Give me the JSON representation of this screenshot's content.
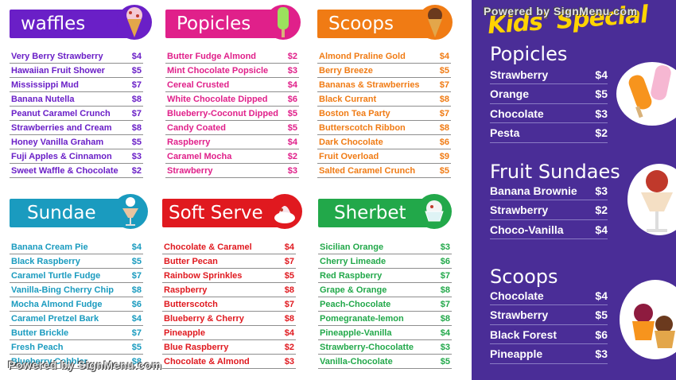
{
  "sections": {
    "waffles": {
      "title": "waffles",
      "color": "#6a1fc7",
      "items": [
        {
          "name": "Very Berry Strawberry",
          "price": "$4"
        },
        {
          "name": "Hawaiian Fruit Shower",
          "price": "$5"
        },
        {
          "name": "Mississippi Mud",
          "price": "$7"
        },
        {
          "name": "Banana Nutella",
          "price": "$8"
        },
        {
          "name": "Peanut Caramel Crunch",
          "price": "$7"
        },
        {
          "name": "Strawberries and Cream",
          "price": "$8"
        },
        {
          "name": "Honey Vanilla Graham",
          "price": "$5"
        },
        {
          "name": "Fuji Apples & Cinnamon",
          "price": "$3"
        },
        {
          "name": "Sweet Waffle & Chocolate",
          "price": "$2"
        }
      ]
    },
    "popicles": {
      "title": "Popicles",
      "color": "#e0208a",
      "items": [
        {
          "name": "Butter Fudge Almond",
          "price": "$2"
        },
        {
          "name": "Mint Chocolate Popsicle",
          "price": "$3"
        },
        {
          "name": "Cereal Crusted",
          "price": "$4"
        },
        {
          "name": "White Chocolate Dipped",
          "price": "$6"
        },
        {
          "name": "Blueberry-Coconut Dipped",
          "price": "$5"
        },
        {
          "name": "Candy Coated",
          "price": "$5"
        },
        {
          "name": "Raspberry",
          "price": "$4"
        },
        {
          "name": "Caramel Mocha",
          "price": "$2"
        },
        {
          "name": "Strawberry",
          "price": "$3"
        }
      ]
    },
    "scoops": {
      "title": "Scoops",
      "color": "#f07b14",
      "items": [
        {
          "name": "Almond Praline Gold",
          "price": "$4"
        },
        {
          "name": "Berry Breeze",
          "price": "$5"
        },
        {
          "name": "Bananas & Strawberries",
          "price": "$7"
        },
        {
          "name": "Black Currant",
          "price": "$8"
        },
        {
          "name": "Boston Tea Party",
          "price": "$7"
        },
        {
          "name": "Butterscotch Ribbon",
          "price": "$8"
        },
        {
          "name": "Dark Chocolate",
          "price": "$6"
        },
        {
          "name": "Fruit Overload",
          "price": "$9"
        },
        {
          "name": "Salted Caramel Crunch",
          "price": "$5"
        }
      ]
    },
    "sundae": {
      "title": "Sundae",
      "color": "#1a9bbf",
      "items": [
        {
          "name": "Banana Cream Pie",
          "price": "$4"
        },
        {
          "name": "Black Raspberry",
          "price": "$5"
        },
        {
          "name": "Caramel Turtle Fudge",
          "price": "$7"
        },
        {
          "name": "Vanilla-Bing Cherry Chip",
          "price": "$8"
        },
        {
          "name": "Mocha Almond Fudge",
          "price": "$6"
        },
        {
          "name": "Caramel Pretzel Bark",
          "price": "$4"
        },
        {
          "name": "Butter Brickle",
          "price": "$7"
        },
        {
          "name": "Fresh Peach",
          "price": "$5"
        },
        {
          "name": "Blueberry Cobbler",
          "price": "$8"
        }
      ]
    },
    "softserve": {
      "title": "Soft Serve",
      "color": "#e0191f",
      "items": [
        {
          "name": "Chocolate & Caramel",
          "price": "$4"
        },
        {
          "name": "Butter Pecan",
          "price": "$7"
        },
        {
          "name": "Rainbow Sprinkles",
          "price": "$5"
        },
        {
          "name": "Raspberry",
          "price": "$8"
        },
        {
          "name": "Butterscotch",
          "price": "$7"
        },
        {
          "name": "Blueberry & Cherry",
          "price": "$8"
        },
        {
          "name": "Pineapple",
          "price": "$4"
        },
        {
          "name": "Blue Raspberry",
          "price": "$2"
        },
        {
          "name": "Chocolate & Almond",
          "price": "$3"
        }
      ]
    },
    "sherbet": {
      "title": "Sherbet",
      "color": "#22a84a",
      "items": [
        {
          "name": "Sicilian Orange",
          "price": "$3"
        },
        {
          "name": "Cherry Limeade",
          "price": "$6"
        },
        {
          "name": "Red Raspberry",
          "price": "$7"
        },
        {
          "name": "Grape & Orange",
          "price": "$8"
        },
        {
          "name": "Peach-Chocolate",
          "price": "$7"
        },
        {
          "name": "Pomegranate-lemon",
          "price": "$8"
        },
        {
          "name": "Pineapple-Vanilla",
          "price": "$4"
        },
        {
          "name": "Strawberry-Chocolatte",
          "price": "$3"
        },
        {
          "name": "Vanilla-Chocolate",
          "price": "$5"
        }
      ]
    }
  },
  "kids": {
    "title": "Kids' Special",
    "color": "#4a2d97",
    "popicles": {
      "title": "Popicles",
      "items": [
        {
          "name": "Strawberry",
          "price": "$4"
        },
        {
          "name": "Orange",
          "price": "$5"
        },
        {
          "name": "Chocolate",
          "price": "$3"
        },
        {
          "name": "Pesta",
          "price": "$2"
        }
      ]
    },
    "fruit_sundaes": {
      "title": "Fruit Sundaes",
      "items": [
        {
          "name": "Banana Brownie",
          "price": "$3"
        },
        {
          "name": "Strawberry",
          "price": "$2"
        },
        {
          "name": "Choco-Vanilla",
          "price": "$4"
        }
      ]
    },
    "scoops": {
      "title": "Scoops",
      "items": [
        {
          "name": "Chocolate",
          "price": "$4"
        },
        {
          "name": "Strawberry",
          "price": "$5"
        },
        {
          "name": "Black Forest",
          "price": "$6"
        },
        {
          "name": "Pineapple",
          "price": "$3"
        }
      ]
    }
  },
  "watermark": "Powered by SignMenu.com",
  "icons": [
    "ice-cream-cone-icon",
    "popsicle-icon",
    "ice-cream-cone-icon",
    "sundae-icon",
    "soft-serve-icon",
    "sherbet-cup-icon"
  ]
}
